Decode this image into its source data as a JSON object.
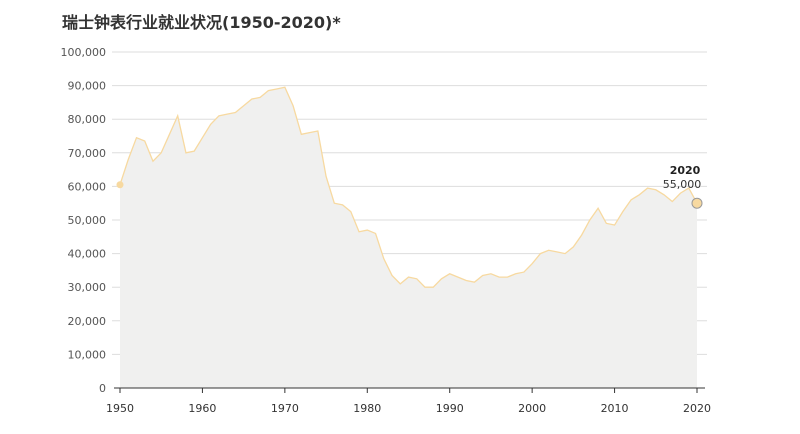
{
  "chart_data": {
    "type": "area",
    "title": "瑞士钟表行业就业状况(1950-2020)*",
    "xlim": [
      1950,
      2020
    ],
    "ylim": [
      0,
      100000
    ],
    "yticks": [
      0,
      10000,
      20000,
      30000,
      40000,
      50000,
      60000,
      70000,
      80000,
      90000,
      100000
    ],
    "ytick_labels": [
      "0",
      "10,000",
      "20,000",
      "30,000",
      "40,000",
      "50,000",
      "60,000",
      "70,000",
      "80,000",
      "90,000",
      "100,000"
    ],
    "xticks": [
      1950,
      1960,
      1970,
      1980,
      1990,
      2000,
      2010,
      2020
    ],
    "xtick_labels": [
      "1950",
      "1960",
      "1970",
      "1980",
      "1990",
      "2000",
      "2010",
      "2020"
    ],
    "grid": true,
    "colors": {
      "line": "#f7d9a0",
      "fill": "#f0f0ef",
      "marker": "#f7d9a0",
      "grid": "#dddddd",
      "axis": "#333333"
    },
    "series": [
      {
        "x": [
          1950,
          1951,
          1952,
          1953,
          1954,
          1955,
          1956,
          1957,
          1958,
          1959,
          1960,
          1961,
          1962,
          1963,
          1964,
          1965,
          1966,
          1967,
          1968,
          1969,
          1970,
          1971,
          1972,
          1973,
          1974,
          1975,
          1976,
          1977,
          1978,
          1979,
          1980,
          1981,
          1982,
          1983,
          1984,
          1985,
          1986,
          1987,
          1988,
          1989,
          1990,
          1991,
          1992,
          1993,
          1994,
          1995,
          1996,
          1997,
          1998,
          1999,
          2000,
          2001,
          2002,
          2003,
          2004,
          2005,
          2006,
          2007,
          2008,
          2009,
          2010,
          2011,
          2012,
          2013,
          2014,
          2015,
          2016,
          2017,
          2018,
          2019,
          2020
        ],
        "y": [
          60500,
          68000,
          74500,
          73500,
          67500,
          70000,
          75500,
          81000,
          70000,
          70500,
          74500,
          78500,
          81000,
          81500,
          82000,
          84000,
          86000,
          86500,
          88500,
          89000,
          89500,
          84000,
          75500,
          76000,
          76500,
          63000,
          55000,
          54500,
          52500,
          46500,
          47000,
          46000,
          38500,
          33500,
          31000,
          33000,
          32500,
          30000,
          30000,
          32500,
          34000,
          33000,
          32000,
          31500,
          33500,
          34000,
          33000,
          33000,
          34000,
          34500,
          37000,
          40000,
          41000,
          40500,
          40000,
          42000,
          45500,
          50000,
          53500,
          49000,
          48500,
          52500,
          56000,
          57500,
          59500,
          59000,
          57500,
          55500,
          58000,
          59500,
          55000
        ]
      }
    ],
    "annotations": [
      {
        "year": "2020",
        "value": "55,000"
      }
    ]
  }
}
